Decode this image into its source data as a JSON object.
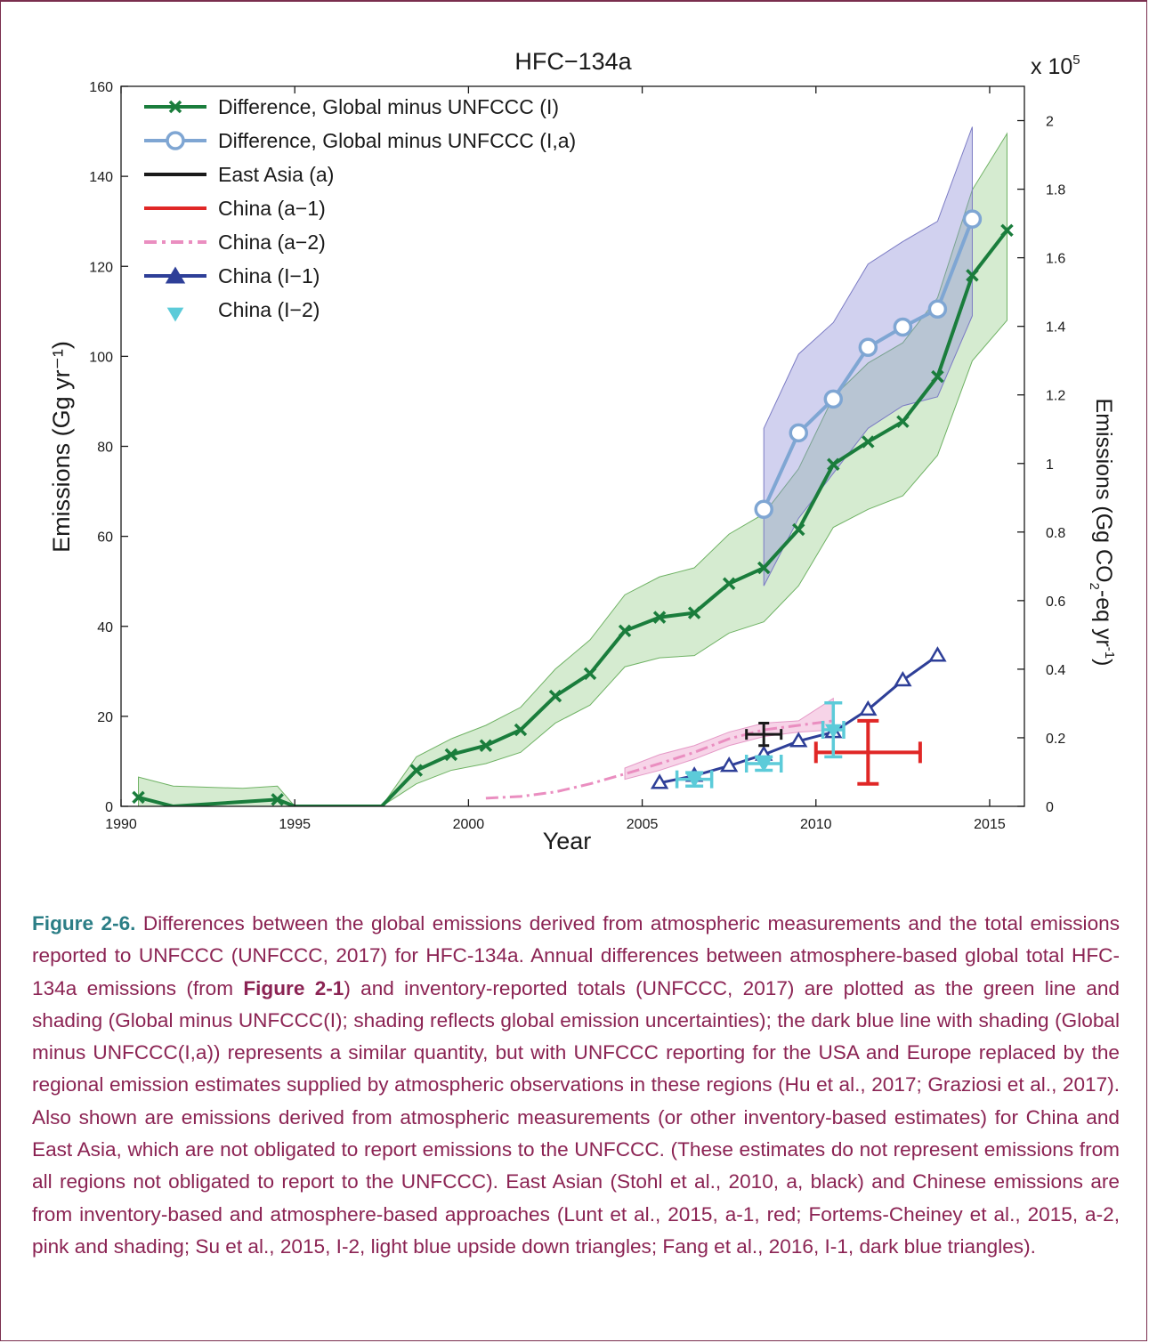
{
  "chart_data": {
    "type": "line",
    "title": "HFC−134a",
    "xlabel": "Year",
    "ylabel": "Emissions (Gg yr⁻¹)",
    "y2label_parts": [
      "Emissions (Gg CO",
      "2",
      "-eq yr",
      "-1",
      ")"
    ],
    "y2_multiplier_base": "x 10",
    "y2_multiplier_exp": "5",
    "xlim": [
      1990,
      2016
    ],
    "ylim": [
      0,
      160
    ],
    "y2lim": [
      0,
      2.1
    ],
    "xticks": [
      1990,
      1995,
      2000,
      2005,
      2010,
      2015
    ],
    "yticks": [
      0,
      20,
      40,
      60,
      80,
      100,
      120,
      140,
      160
    ],
    "y2ticks": [
      "0",
      "0.2",
      "0.4",
      "0.6",
      "0.8",
      "1",
      "1.2",
      "1.4",
      "1.6",
      "1.8",
      "2"
    ],
    "y2tick_values": [
      0,
      0.2,
      0.4,
      0.6,
      0.8,
      1,
      1.2,
      1.4,
      1.6,
      1.8,
      2
    ],
    "legend_position": "top-left",
    "series": [
      {
        "key": "global_I",
        "name": "Difference, Global minus UNFCCC (I)",
        "color": "#1a7d3c",
        "marker": "x",
        "x": [
          1990.5,
          1991.5,
          1994.5,
          1995.0,
          1997.5,
          1998.5,
          1999.5,
          2000.5,
          2001.5,
          2002.5,
          2003.5,
          2004.5,
          2005.5,
          2006.5,
          2007.5,
          2008.5,
          2009.5,
          2010.5,
          2011.5,
          2012.5,
          2013.5,
          2014.5,
          2015.5
        ],
        "y": [
          2,
          0,
          1.5,
          0,
          0,
          8,
          11.5,
          13.5,
          17,
          24.5,
          29.5,
          39,
          42,
          43,
          49.5,
          53,
          61.5,
          76,
          81,
          85.5,
          95.5,
          118,
          128
        ],
        "marker_x": [
          1990.5,
          1994.5,
          1998.5,
          1999.5,
          2000.5,
          2001.5,
          2002.5,
          2003.5,
          2004.5,
          2005.5,
          2006.5,
          2007.5,
          2008.5,
          2009.5,
          2010.5,
          2011.5,
          2012.5,
          2013.5,
          2014.5,
          2015.5
        ],
        "marker_y": [
          2,
          1.5,
          8,
          11.5,
          13.5,
          17,
          24.5,
          29.5,
          39,
          42,
          43,
          49.5,
          53,
          61.5,
          76,
          81,
          85.5,
          95.5,
          118,
          128
        ],
        "band_x": [
          1990.5,
          1991.5,
          1993.5,
          1994.5,
          1995.0,
          1997.5,
          1998.5,
          1999.5,
          2000.5,
          2001.5,
          2002.5,
          2003.5,
          2004.5,
          2005.5,
          2006.5,
          2007.5,
          2008.5,
          2009.5,
          2010.5,
          2011.5,
          2012.5,
          2013.5,
          2014.5,
          2015.5
        ],
        "band_upper": [
          6.5,
          4.5,
          4,
          4.5,
          0,
          0,
          11,
          15,
          18,
          22,
          30.5,
          37,
          47,
          51,
          53,
          60.5,
          65,
          75,
          91,
          98.5,
          103,
          113,
          137,
          149.5
        ],
        "band_lower": [
          0,
          0,
          0,
          0,
          0,
          0,
          5,
          8,
          9.5,
          12,
          18.5,
          22.5,
          31,
          33,
          33.5,
          38.5,
          41,
          49,
          62,
          66,
          69,
          78,
          99,
          108
        ]
      },
      {
        "key": "global_Ia",
        "name": "Difference, Global minus UNFCCC (I,a)",
        "color": "#7fa6d3",
        "marker": "circle",
        "x": [
          2008.5,
          2009.5,
          2010.5,
          2011.5,
          2012.5,
          2013.5,
          2014.5
        ],
        "y": [
          66,
          83,
          90.5,
          102,
          106.5,
          110.5,
          130.5
        ],
        "band_x": [
          2008.5,
          2009.5,
          2010.5,
          2011.5,
          2012.5,
          2013.5,
          2014.5
        ],
        "band_upper": [
          84,
          100.5,
          107.5,
          120.5,
          125.5,
          130,
          151
        ],
        "band_lower": [
          49,
          64,
          74,
          84,
          89,
          91,
          109
        ]
      },
      {
        "key": "east_asia",
        "name": "East Asia (a)",
        "color": "#1a1a1a",
        "marker": "errorbar",
        "x": [
          2008.5
        ],
        "y": [
          16
        ],
        "xerr": [
          0.5
        ],
        "yerr": [
          2.5
        ]
      },
      {
        "key": "china_a1",
        "name": "China (a−1)",
        "color": "#e02726",
        "marker": "errorbar",
        "x": [
          2011.5
        ],
        "y": [
          12
        ],
        "xerr": [
          1.5
        ],
        "yerr": [
          7
        ]
      },
      {
        "key": "china_a2",
        "name": "China (a−2)",
        "color": "#ea8ec0",
        "marker": "dashdot",
        "x": [
          2000.5,
          2001.5,
          2002.5,
          2003.5,
          2004.5,
          2005.5,
          2006.5,
          2007.5,
          2008.5,
          2009.5,
          2010.5
        ],
        "y": [
          1.8,
          2.2,
          3.2,
          5,
          7.2,
          9.5,
          12,
          15,
          17,
          18,
          19
        ],
        "band_x": [
          2004.5,
          2005.5,
          2006.5,
          2007.5,
          2008.5,
          2009.5,
          2010.5
        ],
        "band_upper": [
          8.5,
          11.5,
          13.5,
          16.5,
          18.5,
          19,
          24
        ],
        "band_lower": [
          6,
          8,
          10.5,
          13.5,
          15.5,
          16.5,
          17
        ]
      },
      {
        "key": "china_I1",
        "name": "China (I−1)",
        "color": "#2e3f98",
        "marker": "triangle-up",
        "x": [
          2005.5,
          2006.5,
          2007.5,
          2008.5,
          2009.5,
          2010.5,
          2011.5,
          2012.5,
          2013.5
        ],
        "y": [
          5.2,
          6.8,
          9,
          11.5,
          14.5,
          16.5,
          21.5,
          28,
          33.5
        ]
      },
      {
        "key": "china_I2",
        "name": "China (I−2)",
        "color": "#5ccbd9",
        "marker": "triangle-down",
        "x": [
          2006.5,
          2008.5,
          2010.5
        ],
        "y": [
          6,
          9.5,
          17
        ],
        "xerr": [
          0.5,
          0.5,
          0.3
        ],
        "yerr": [
          1.5,
          1.5,
          6
        ]
      }
    ]
  },
  "caption": {
    "label": "Figure 2-6.",
    "part1": " Differences between the global emissions derived from atmospheric measurements and the total emissions reported to UNFCCC (UNFCCC, 2017) for HFC-134a. Annual differences between atmosphere-based global total HFC-134a emissions (from ",
    "ref": "Figure 2-1",
    "part2": ") and inventory-reported totals (UNFCCC, 2017) are plotted as the green line and shading (Global minus UNFCCC(I); shading reflects global emission uncertainties); the dark blue line with shading (Global minus UNFCCC(I,a)) represents a similar quantity, but with UNFCCC reporting for the USA and Europe replaced by the regional emission estimates supplied by atmospheric observations in these regions (Hu et al., 2017; Graziosi et al., 2017). Also shown are emissions derived from atmospheric measurements (or other inventory-based estimates) for China and East Asia, which are not obligated to report emissions to the UNFCCC. (These estimates do not represent emissions from all regions not obligated to report to the UNFCCC). East Asian (Stohl et al., 2010, a, black) and Chinese emissions are from inventory-based and atmosphere-based approaches (Lunt et al., 2015, a-1, red; Fortems-Cheiney et al., 2015, a-2, pink and shading; Su et al., 2015, I-2, light blue upside down triangles; Fang et al., 2016, I-1, dark blue triangles)."
  }
}
